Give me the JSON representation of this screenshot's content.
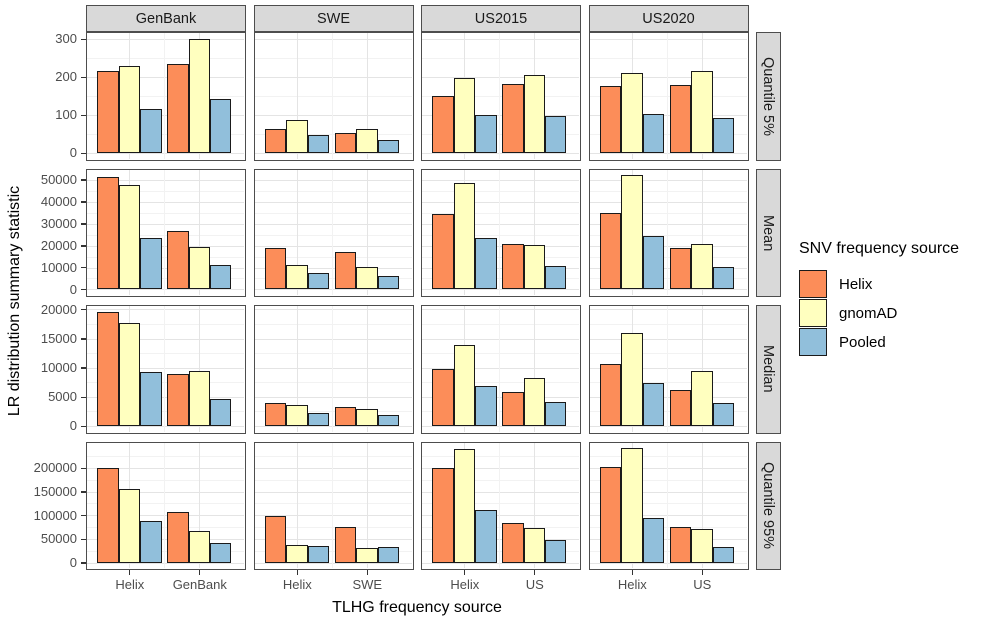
{
  "figure": {
    "y_axis_title": "LR distribution summary statistic",
    "x_axis_title": "TLHG frequency source"
  },
  "legend": {
    "title": "SNV frequency source"
  },
  "colors": {
    "strip_bg": "#D9D9D9",
    "panel_border": "#4D4D4D",
    "grid_major": "#E4E4E4",
    "grid_minor": "#F2F2F2",
    "bar_outline": "#1A1A1A",
    "tick_text": "#4D4D4D"
  },
  "chart_data": {
    "type": "bar",
    "title": "",
    "xlabel": "TLHG frequency source",
    "ylabel": "LR distribution summary statistic",
    "legend_position": "right",
    "grid": true,
    "series": [
      {
        "name": "Helix",
        "color": "#FC8D59"
      },
      {
        "name": "gnomAD",
        "color": "#FFFFBF"
      },
      {
        "name": "Pooled",
        "color": "#91BFDB"
      }
    ],
    "facet_cols": [
      {
        "label": "GenBank",
        "x_labels": [
          "Helix",
          "GenBank"
        ]
      },
      {
        "label": "SWE",
        "x_labels": [
          "Helix",
          "SWE"
        ]
      },
      {
        "label": "US2015",
        "x_labels": [
          "Helix",
          "US"
        ]
      },
      {
        "label": "US2020",
        "x_labels": [
          "Helix",
          "US"
        ]
      }
    ],
    "facet_rows": [
      {
        "label": "Quantile 5%",
        "ticks": [
          0,
          100,
          200,
          300
        ],
        "minor_step": 50,
        "ylim": [
          -15,
          315
        ],
        "values": {
          "GenBank": [
            [
              216,
              228,
              115
            ],
            [
              234,
              300,
              141
            ]
          ],
          "SWE": [
            [
              64,
              86,
              46
            ],
            [
              52,
              64,
              35
            ]
          ],
          "US2015": [
            [
              149,
              196,
              100
            ],
            [
              181,
              205,
              98
            ]
          ],
          "US2020": [
            [
              176,
              210,
              102
            ],
            [
              179,
              214,
              93
            ]
          ]
        }
      },
      {
        "label": "Mean",
        "ticks": [
          0,
          10000,
          20000,
          30000,
          40000,
          50000
        ],
        "minor_step": 5000,
        "ylim": [
          -2600,
          54600
        ],
        "values": {
          "GenBank": [
            [
              51000,
              47400,
              23500
            ],
            [
              26700,
              19500,
              11200
            ]
          ],
          "SWE": [
            [
              19100,
              11000,
              7300
            ],
            [
              16900,
              10400,
              6200
            ]
          ],
          "US2015": [
            [
              34300,
              48600,
              23500
            ],
            [
              20900,
              20300,
              10500
            ]
          ],
          "US2020": [
            [
              35000,
              52000,
              24200
            ],
            [
              18900,
              20800,
              10300
            ]
          ]
        }
      },
      {
        "label": "Median",
        "ticks": [
          0,
          5000,
          10000,
          15000,
          20000
        ],
        "minor_step": 2500,
        "ylim": [
          -1000,
          20600
        ],
        "values": {
          "GenBank": [
            [
              19500,
              17600,
              9200
            ],
            [
              8900,
              9400,
              4600
            ]
          ],
          "SWE": [
            [
              4000,
              3600,
              2200
            ],
            [
              3300,
              2900,
              1800
            ]
          ],
          "US2015": [
            [
              9800,
              13900,
              6800
            ],
            [
              5900,
              8300,
              4100
            ]
          ],
          "US2020": [
            [
              10700,
              16000,
              7300
            ],
            [
              6200,
              9400,
              4000
            ]
          ]
        }
      },
      {
        "label": "Quantile 95%",
        "ticks": [
          0,
          50000,
          100000,
          150000,
          200000
        ],
        "minor_step": 25000,
        "ylim": [
          -12000,
          254000
        ],
        "values": {
          "GenBank": [
            [
              200000,
              156000,
              88000
            ],
            [
              107000,
              67000,
              41000
            ]
          ],
          "SWE": [
            [
              98000,
              38000,
              36000
            ],
            [
              76000,
              30000,
              32000
            ]
          ],
          "US2015": [
            [
              200000,
              241000,
              112000
            ],
            [
              83000,
              74000,
              48000
            ]
          ],
          "US2020": [
            [
              202000,
              242000,
              94000
            ],
            [
              76000,
              71000,
              33000
            ]
          ]
        }
      }
    ]
  }
}
